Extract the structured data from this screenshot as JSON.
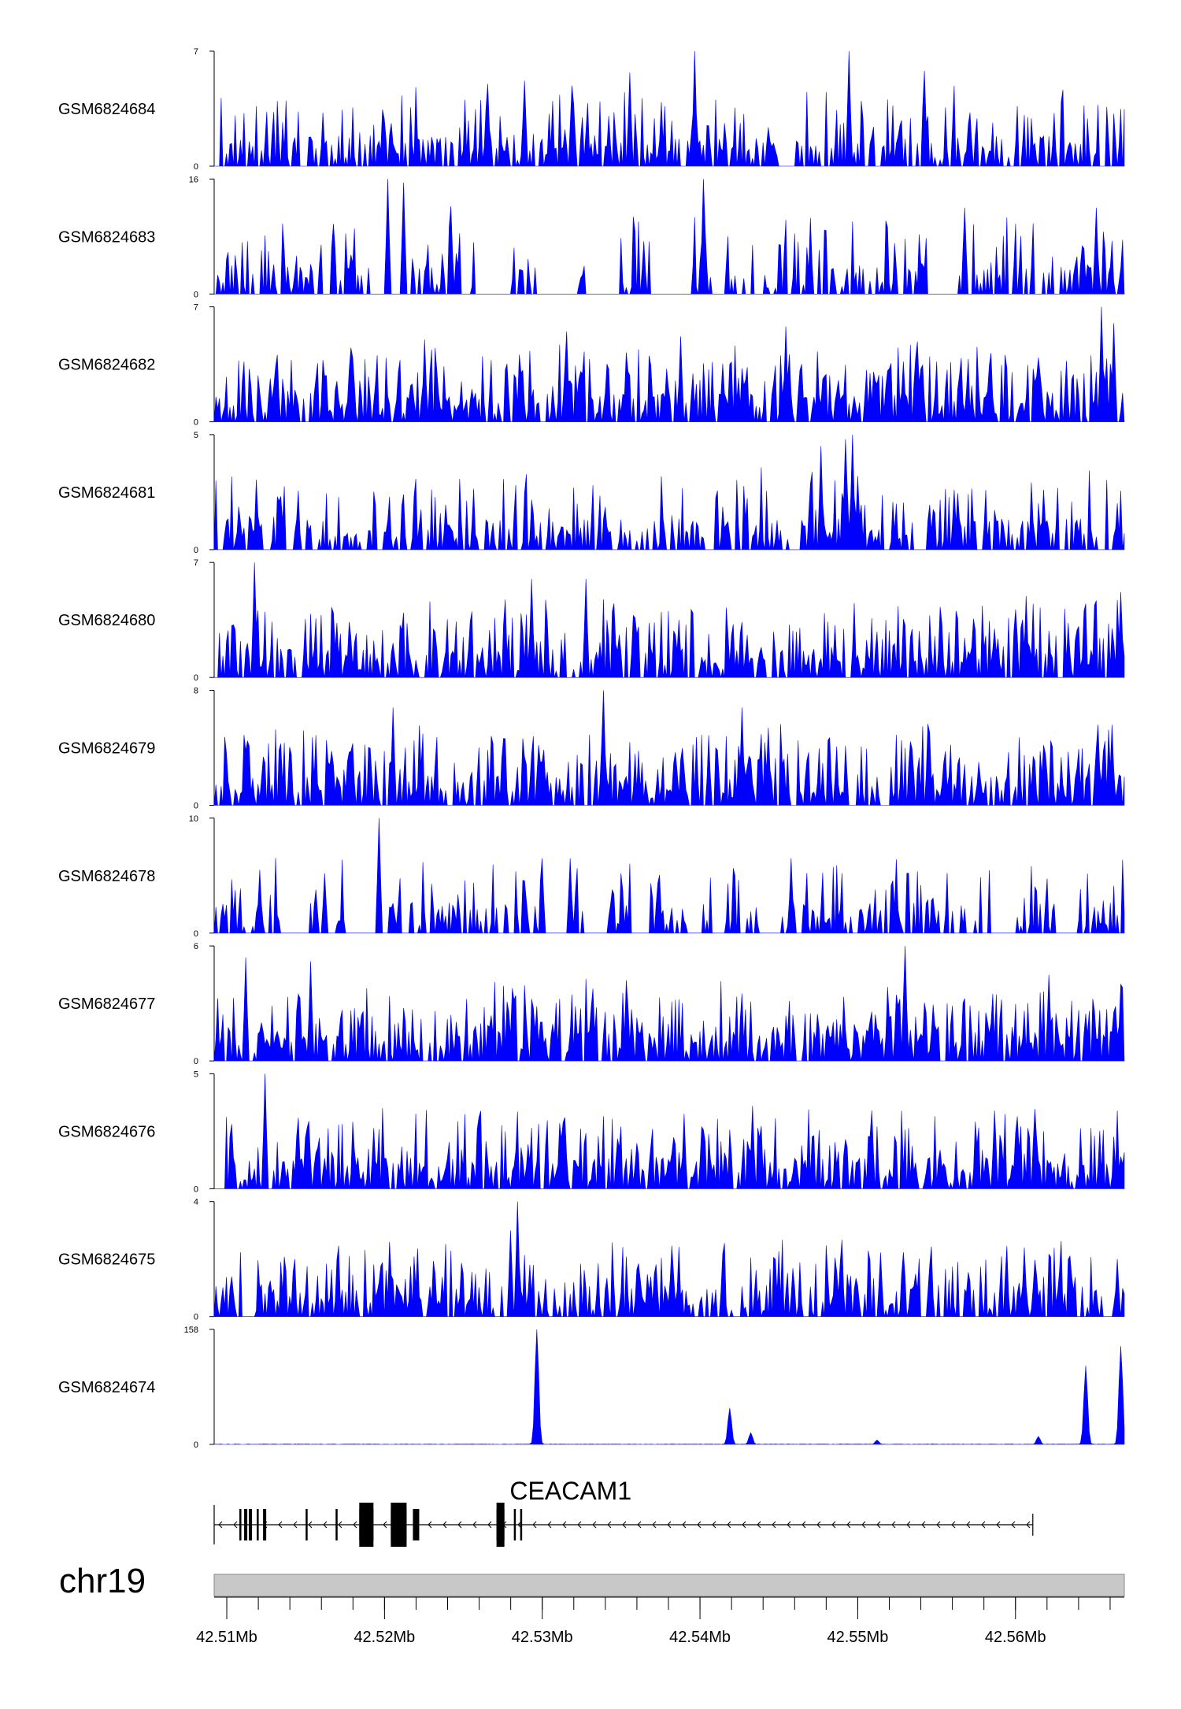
{
  "chart_data": {
    "type": "area",
    "title": "",
    "xlabel": "",
    "ylabel": "",
    "chromosome": "chr19",
    "xlim": [
      42.5092,
      42.5669
    ],
    "x_ticks": [
      "42.51Mb",
      "42.52Mb",
      "42.53Mb",
      "42.54Mb",
      "42.55Mb",
      "42.56Mb"
    ],
    "x_tick_values": [
      42.51,
      42.52,
      42.53,
      42.54,
      42.55,
      42.56
    ],
    "minor_tick_step": 0.002,
    "fill_color": "#0000ff",
    "series": [
      {
        "name": "GSM6824684",
        "ymax": 7,
        "ylabels": [
          "0",
          "7"
        ],
        "profile": "sparse",
        "seed": 11,
        "peaks": [
          [
            42.5265,
            5.0
          ],
          [
            42.5289,
            5.2
          ],
          [
            42.5356,
            5.7
          ],
          [
            42.5397,
            7.0
          ],
          [
            42.5495,
            7.0
          ],
          [
            42.5542,
            5.8
          ]
        ]
      },
      {
        "name": "GSM6824683",
        "ymax": 16,
        "ylabels": [
          "0",
          "16"
        ],
        "profile": "gapped",
        "seed": 23,
        "peaks": [
          [
            42.5202,
            16.0
          ],
          [
            42.5212,
            15.5
          ],
          [
            42.5242,
            12.2
          ],
          [
            42.5402,
            16.0
          ],
          [
            42.5568,
            12.0
          ],
          [
            42.5651,
            12.0
          ]
        ]
      },
      {
        "name": "GSM6824682",
        "ymax": 7,
        "ylabels": [
          "0",
          "7"
        ],
        "profile": "dense",
        "seed": 37,
        "peaks": [
          [
            42.5179,
            4.5
          ],
          [
            42.5225,
            5.0
          ],
          [
            42.5316,
            5.5
          ],
          [
            42.5388,
            5.2
          ],
          [
            42.5454,
            5.8
          ],
          [
            42.5655,
            7.0
          ],
          [
            42.5662,
            6.0
          ]
        ]
      },
      {
        "name": "GSM6824681",
        "ymax": 5,
        "ylabels": [
          "0",
          "5"
        ],
        "profile": "sparse",
        "seed": 41,
        "peaks": [
          [
            42.5477,
            4.5
          ],
          [
            42.5492,
            4.8
          ],
          [
            42.5497,
            5.0
          ],
          [
            42.55,
            3.2
          ],
          [
            42.5561,
            2.6
          ],
          [
            42.5618,
            2.6
          ]
        ]
      },
      {
        "name": "GSM6824680",
        "ymax": 7,
        "ylabels": [
          "0",
          "7"
        ],
        "profile": "dense",
        "seed": 53,
        "peaks": [
          [
            42.5118,
            7.0
          ],
          [
            42.5293,
            6.0
          ],
          [
            42.5328,
            6.0
          ],
          [
            42.5345,
            4.5
          ],
          [
            42.5667,
            5.2
          ]
        ]
      },
      {
        "name": "GSM6824679",
        "ymax": 8,
        "ylabels": [
          "0",
          "8"
        ],
        "profile": "dense",
        "seed": 61,
        "peaks": [
          [
            42.5205,
            6.8
          ],
          [
            42.5339,
            8.0
          ],
          [
            42.5427,
            6.8
          ],
          [
            42.5443,
            5.4
          ],
          [
            42.5652,
            5.6
          ],
          [
            42.5661,
            5.6
          ]
        ]
      },
      {
        "name": "GSM6824678",
        "ymax": 10,
        "ylabels": [
          "0",
          "10"
        ],
        "profile": "gapped",
        "seed": 73,
        "peaks": [
          [
            42.5196,
            10.0
          ],
          [
            42.5121,
            5.5
          ],
          [
            42.5162,
            5.2
          ],
          [
            42.53,
            6.5
          ],
          [
            42.5318,
            6.5
          ],
          [
            42.5458,
            6.5
          ]
        ]
      },
      {
        "name": "GSM6824677",
        "ymax": 6,
        "ylabels": [
          "0",
          "6"
        ],
        "profile": "dense",
        "seed": 83,
        "peaks": [
          [
            42.5112,
            5.4
          ],
          [
            42.5153,
            5.2
          ],
          [
            42.553,
            6.0
          ],
          [
            42.5621,
            4.5
          ],
          [
            42.5667,
            4.0
          ]
        ]
      },
      {
        "name": "GSM6824676",
        "ymax": 5,
        "ylabels": [
          "0",
          "5"
        ],
        "profile": "dense",
        "seed": 97,
        "peaks": [
          [
            42.5124,
            5.0
          ],
          [
            42.5314,
            3.1
          ],
          [
            42.5433,
            3.6
          ],
          [
            42.5509,
            3.4
          ],
          [
            42.5587,
            3.4
          ]
        ]
      },
      {
        "name": "GSM6824675",
        "ymax": 4,
        "ylabels": [
          "0",
          "4"
        ],
        "profile": "sparse",
        "seed": 101,
        "peaks": [
          [
            42.5284,
            4.0
          ],
          [
            42.528,
            3.0
          ],
          [
            42.5292,
            1.8
          ],
          [
            42.5606,
            2.4
          ],
          [
            42.5665,
            2.0
          ]
        ]
      },
      {
        "name": "GSM6824674",
        "ymax": 158,
        "ylabels": [
          "0",
          "158"
        ],
        "profile": "flat",
        "seed": 113,
        "peaks": [
          [
            42.5297,
            158.0
          ],
          [
            42.5419,
            50.0
          ],
          [
            42.5432,
            16.0
          ],
          [
            42.5644,
            108.0
          ],
          [
            42.5667,
            135.0
          ],
          [
            42.5615,
            11.0
          ],
          [
            42.5512,
            6.0
          ]
        ]
      }
    ],
    "gene": {
      "name": "CEACAM1",
      "start": 42.5092,
      "end": 42.5611,
      "strand": "-",
      "exons": [
        [
          42.5108,
          42.5109
        ],
        [
          42.5111,
          42.5113
        ],
        [
          42.5114,
          42.5116
        ],
        [
          42.5119,
          42.512
        ],
        [
          42.5123,
          42.5125
        ],
        [
          42.515,
          42.5151
        ],
        [
          42.5169,
          42.517
        ],
        [
          42.5184,
          42.5193
        ],
        [
          42.5204,
          42.5214
        ],
        [
          42.5218,
          42.5222
        ],
        [
          42.5271,
          42.5276
        ],
        [
          42.5282,
          42.5283
        ],
        [
          42.5286,
          42.5287
        ]
      ],
      "cds": [
        [
          42.5184,
          42.5193
        ],
        [
          42.5204,
          42.5214
        ],
        [
          42.5271,
          42.5276
        ]
      ]
    }
  }
}
